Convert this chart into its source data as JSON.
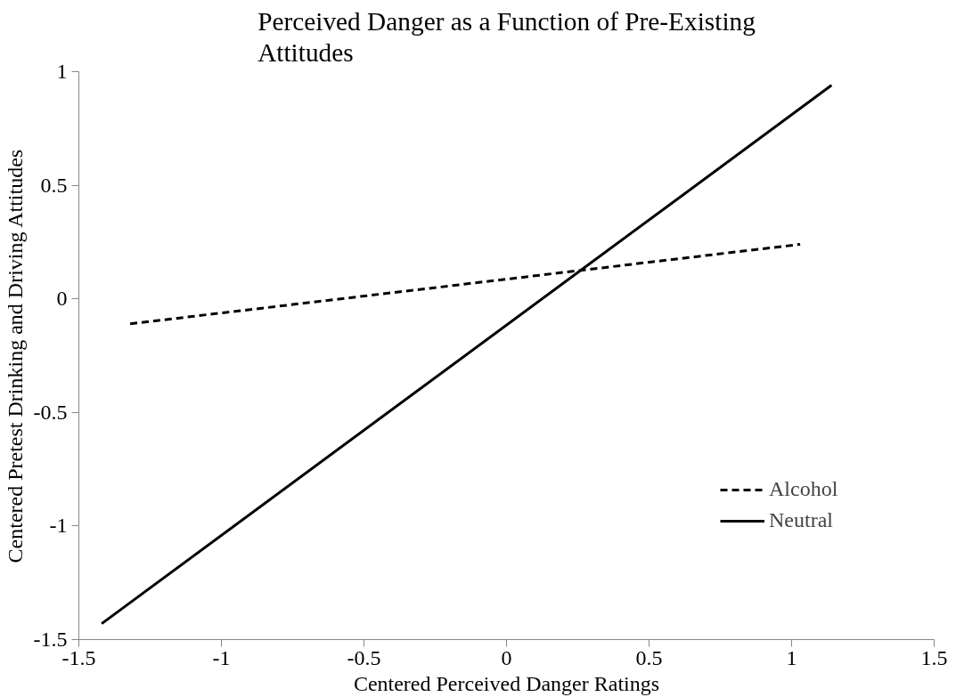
{
  "chart_data": {
    "type": "line",
    "title": "Perceived Danger as a Function of Pre-Existing Attitudes",
    "xlabel": "Centered Perceived Danger Ratings",
    "ylabel": "Centered Pretest Drinking and Driving Attitudes",
    "series": [
      {
        "name": "Alcohol",
        "color": "#000000",
        "line_style": "dashed",
        "x": [
          -1.32,
          1.03
        ],
        "values": [
          -0.11,
          0.24
        ]
      },
      {
        "name": "Neutral",
        "color": "#000000",
        "line_style": "solid",
        "x": [
          -1.42,
          1.14
        ],
        "values": [
          -1.43,
          0.94
        ]
      }
    ],
    "xlim": [
      -1.5,
      1.5
    ],
    "ylim": [
      -1.5,
      1
    ],
    "xticks": [
      -1.5,
      -1,
      -0.5,
      0,
      0.5,
      1,
      1.5
    ],
    "yticks": [
      -1.5,
      -1,
      -0.5,
      0,
      0.5,
      1
    ],
    "grid": false,
    "legend": "right",
    "marker": "none"
  }
}
